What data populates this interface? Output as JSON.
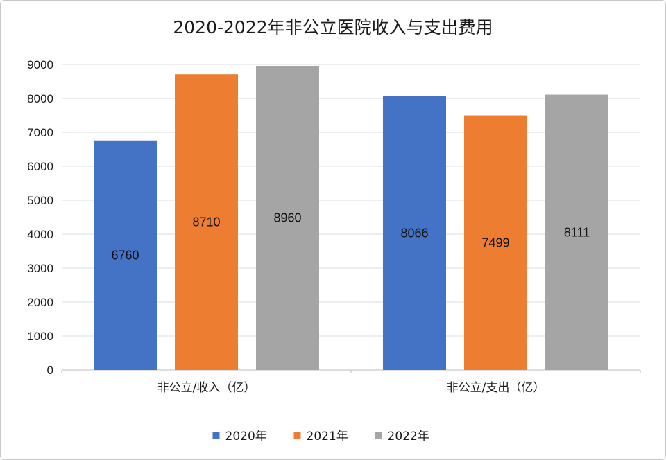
{
  "chart_data": {
    "type": "bar",
    "title": "2020-2022年非公立医院收入与支出费用",
    "categories": [
      "非公立/收入（亿）",
      "非公立/支出（亿）"
    ],
    "series": [
      {
        "name": "2020年",
        "color": "#4472C4",
        "values": [
          6760,
          8066
        ]
      },
      {
        "name": "2021年",
        "color": "#ED7D31",
        "values": [
          8710,
          7499
        ]
      },
      {
        "name": "2022年",
        "color": "#A5A5A5",
        "values": [
          8960,
          8111
        ]
      }
    ],
    "ylim": [
      0,
      9000
    ],
    "yticks": [
      0,
      1000,
      2000,
      3000,
      4000,
      5000,
      6000,
      7000,
      8000,
      9000
    ],
    "grid": true,
    "legend_position": "bottom",
    "xlabel": "",
    "ylabel": ""
  }
}
